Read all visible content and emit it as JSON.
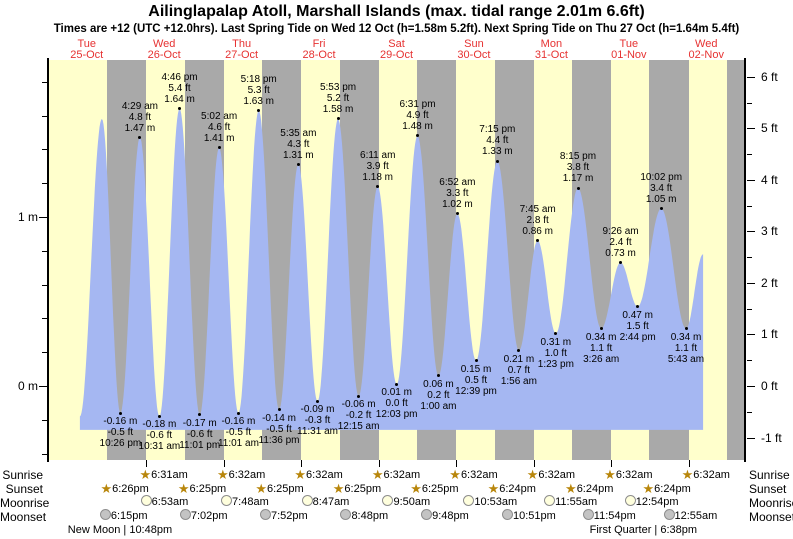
{
  "title": "Ailinglapalap Atoll, Marshall Islands (max. tidal range 2.01m 6.6ft)",
  "subtitle": "Times are +12 (UTC +12.0hrs). Last Spring Tide on Wed 12 Oct (h=1.58m 5.2ft). Next Spring Tide on Thu 27 Oct (h=1.64m 5.4ft)",
  "chart_data": {
    "type": "area",
    "x_axis": {
      "unit": "hours_from_start_of_first_day",
      "range": [
        0,
        216
      ],
      "days": [
        {
          "dow": "Tue",
          "date": "25-Oct"
        },
        {
          "dow": "Wed",
          "date": "26-Oct"
        },
        {
          "dow": "Thu",
          "date": "27-Oct"
        },
        {
          "dow": "Fri",
          "date": "28-Oct"
        },
        {
          "dow": "Sat",
          "date": "29-Oct"
        },
        {
          "dow": "Sun",
          "date": "30-Oct"
        },
        {
          "dow": "Mon",
          "date": "31-Oct"
        },
        {
          "dow": "Tue",
          "date": "01-Nov"
        },
        {
          "dow": "Wed",
          "date": "02-Nov"
        }
      ]
    },
    "y_left": {
      "unit": "m",
      "major_ticks": [
        0,
        1
      ],
      "major_labels": [
        "0 m",
        "1 m"
      ],
      "minor_step": 0.2
    },
    "y_right": {
      "unit": "ft",
      "major_ticks": [
        -1,
        0,
        1,
        2,
        3,
        4,
        5,
        6
      ],
      "minor_step": 0.5
    },
    "night_bands_hours": [
      [
        18.43,
        30.52
      ],
      [
        42.42,
        54.53
      ],
      [
        66.42,
        78.53
      ],
      [
        90.42,
        102.53
      ],
      [
        114.42,
        126.53
      ],
      [
        138.4,
        150.53
      ],
      [
        162.4,
        174.53
      ],
      [
        186.4,
        198.53
      ],
      [
        210.4,
        216
      ]
    ],
    "baseline_m": -0.26,
    "extremes": [
      {
        "kind": "low",
        "t": 9.9,
        "m": -0.18,
        "label_lines": []
      },
      {
        "kind": "high",
        "t": 16.7,
        "m": 1.58,
        "label_lines": []
      },
      {
        "kind": "low",
        "t": 22.433,
        "m": -0.16,
        "label_lines": [
          "-0.16 m",
          "-0.5 ft",
          "10:26 pm"
        ]
      },
      {
        "kind": "high",
        "t": 28.483,
        "m": 1.47,
        "label_lines": [
          "4:29 am",
          "4.8 ft",
          "1.47 m"
        ]
      },
      {
        "kind": "low",
        "t": 34.517,
        "m": -0.18,
        "label_lines": [
          "-0.18 m",
          "-0.6 ft",
          "10:31 am"
        ]
      },
      {
        "kind": "high",
        "t": 40.767,
        "m": 1.64,
        "label_lines": [
          "4:46 pm",
          "5.4 ft",
          "1.64 m"
        ]
      },
      {
        "kind": "low",
        "t": 47.017,
        "m": -0.17,
        "label_lines": [
          "-0.17 m",
          "-0.6 ft",
          "11:01 pm"
        ]
      },
      {
        "kind": "high",
        "t": 53.033,
        "m": 1.41,
        "label_lines": [
          "5:02 am",
          "4.6 ft",
          "1.41 m"
        ]
      },
      {
        "kind": "low",
        "t": 59.017,
        "m": -0.16,
        "label_lines": [
          "-0.16 m",
          "-0.5 ft",
          "11:01 am"
        ]
      },
      {
        "kind": "high",
        "t": 65.3,
        "m": 1.63,
        "label_lines": [
          "5:18 pm",
          "5.3 ft",
          "1.63 m"
        ]
      },
      {
        "kind": "low",
        "t": 71.6,
        "m": -0.14,
        "label_lines": [
          "-0.14 m",
          "-0.5 ft",
          "11:36 pm"
        ]
      },
      {
        "kind": "high",
        "t": 77.583,
        "m": 1.31,
        "label_lines": [
          "5:35 am",
          "4.3 ft",
          "1.31 m"
        ]
      },
      {
        "kind": "low",
        "t": 83.517,
        "m": -0.09,
        "label_lines": [
          "-0.09 m",
          "-0.3 ft",
          "11:31 am"
        ]
      },
      {
        "kind": "high",
        "t": 89.883,
        "m": 1.58,
        "label_lines": [
          "5:53 pm",
          "5.2 ft",
          "1.58 m"
        ]
      },
      {
        "kind": "low",
        "t": 96.25,
        "m": -0.06,
        "label_lines": [
          "-0.06 m",
          "-0.2 ft",
          "12:15 am"
        ]
      },
      {
        "kind": "high",
        "t": 102.183,
        "m": 1.18,
        "label_lines": [
          "6:11 am",
          "3.9 ft",
          "1.18 m"
        ]
      },
      {
        "kind": "low",
        "t": 108.05,
        "m": 0.01,
        "label_lines": [
          "0.01 m",
          "0.0 ft",
          "12:03 pm"
        ]
      },
      {
        "kind": "high",
        "t": 114.517,
        "m": 1.48,
        "label_lines": [
          "6:31 pm",
          "4.9 ft",
          "1.48 m"
        ]
      },
      {
        "kind": "low",
        "t": 121.0,
        "m": 0.06,
        "label_lines": [
          "0.06 m",
          "0.2 ft",
          "1:00 am"
        ]
      },
      {
        "kind": "high",
        "t": 126.867,
        "m": 1.02,
        "label_lines": [
          "6:52 am",
          "3.3 ft",
          "1.02 m"
        ]
      },
      {
        "kind": "low",
        "t": 132.65,
        "m": 0.15,
        "label_lines": [
          "0.15 m",
          "0.5 ft",
          "12:39 pm"
        ]
      },
      {
        "kind": "high",
        "t": 139.25,
        "m": 1.33,
        "label_lines": [
          "7:15 pm",
          "4.4 ft",
          "1.33 m"
        ]
      },
      {
        "kind": "low",
        "t": 145.933,
        "m": 0.21,
        "label_lines": [
          "0.21 m",
          "0.7 ft",
          "1:56 am"
        ]
      },
      {
        "kind": "high",
        "t": 151.75,
        "m": 0.86,
        "label_lines": [
          "7:45 am",
          "2.8 ft",
          "0.86 m"
        ]
      },
      {
        "kind": "low",
        "t": 157.383,
        "m": 0.31,
        "label_lines": [
          "0.31 m",
          "1.0 ft",
          "1:23 pm"
        ]
      },
      {
        "kind": "high",
        "t": 164.25,
        "m": 1.17,
        "label_lines": [
          "8:15 pm",
          "3.8 ft",
          "1.17 m"
        ]
      },
      {
        "kind": "low",
        "t": 171.433,
        "m": 0.34,
        "label_lines": [
          "0.34 m",
          "1.1 ft",
          "3:26 am"
        ]
      },
      {
        "kind": "high",
        "t": 177.433,
        "m": 0.73,
        "label_lines": [
          "9:26 am",
          "2.4 ft",
          "0.73 m"
        ]
      },
      {
        "kind": "low",
        "t": 182.733,
        "m": 0.47,
        "label_lines": [
          "0.47 m",
          "1.5 ft",
          "2:44 pm"
        ]
      },
      {
        "kind": "high",
        "t": 190.033,
        "m": 1.05,
        "label_lines": [
          "10:02 pm",
          "3.4 ft",
          "1.05 m"
        ]
      },
      {
        "kind": "low",
        "t": 197.717,
        "m": 0.34,
        "label_lines": [
          "0.34 m",
          "1.1 ft",
          "5:43 am"
        ]
      },
      {
        "kind": "high",
        "t": 203.0,
        "m": 0.78,
        "label_lines": []
      }
    ],
    "colors": {
      "day_band": "#ffffcc",
      "night_band": "#a9a9a9",
      "tide_area": "#a5b7f2",
      "day_label": "#e63232",
      "star": "#b8860b",
      "moonrise_fill": "#ffffdd",
      "moonset_fill": "#c3c3c3"
    }
  },
  "astro": {
    "rows": [
      {
        "name": "Sunrise",
        "icon": "star",
        "entries": [
          {
            "t": 30.52,
            "time": "6:31am"
          },
          {
            "t": 54.53,
            "time": "6:32am"
          },
          {
            "t": 78.53,
            "time": "6:32am"
          },
          {
            "t": 102.53,
            "time": "6:32am"
          },
          {
            "t": 126.53,
            "time": "6:32am"
          },
          {
            "t": 150.53,
            "time": "6:32am"
          },
          {
            "t": 174.53,
            "time": "6:32am"
          },
          {
            "t": 198.53,
            "time": "6:32am"
          }
        ]
      },
      {
        "name": "Sunset",
        "icon": "star",
        "entries": [
          {
            "t": 18.43,
            "time": "6:26pm"
          },
          {
            "t": 42.42,
            "time": "6:25pm"
          },
          {
            "t": 66.42,
            "time": "6:25pm"
          },
          {
            "t": 90.42,
            "time": "6:25pm"
          },
          {
            "t": 114.42,
            "time": "6:25pm"
          },
          {
            "t": 138.4,
            "time": "6:24pm"
          },
          {
            "t": 162.4,
            "time": "6:24pm"
          },
          {
            "t": 186.4,
            "time": "6:24pm"
          }
        ]
      },
      {
        "name": "Moonrise",
        "icon": "moon-light",
        "entries": [
          {
            "t": 30.88,
            "time": "6:53am"
          },
          {
            "t": 55.8,
            "time": "7:48am"
          },
          {
            "t": 80.78,
            "time": "8:47am"
          },
          {
            "t": 105.83,
            "time": "9:50am"
          },
          {
            "t": 130.88,
            "time": "10:53am"
          },
          {
            "t": 155.92,
            "time": "11:55am"
          },
          {
            "t": 180.9,
            "time": "12:54pm"
          }
        ]
      },
      {
        "name": "Moonset",
        "icon": "moon-dark",
        "entries": [
          {
            "t": 18.25,
            "time": "6:15pm"
          },
          {
            "t": 43.03,
            "time": "7:02pm"
          },
          {
            "t": 67.87,
            "time": "7:52pm"
          },
          {
            "t": 92.8,
            "time": "8:48pm"
          },
          {
            "t": 117.8,
            "time": "9:48pm"
          },
          {
            "t": 142.85,
            "time": "10:51pm"
          },
          {
            "t": 167.9,
            "time": "11:54pm"
          },
          {
            "t": 192.92,
            "time": "12:55am"
          }
        ]
      }
    ],
    "phases": [
      {
        "label": "New Moon | 10:48pm",
        "center_t": 22.3
      },
      {
        "label": "First Quarter | 6:38pm",
        "center_t": 184.5
      }
    ]
  }
}
